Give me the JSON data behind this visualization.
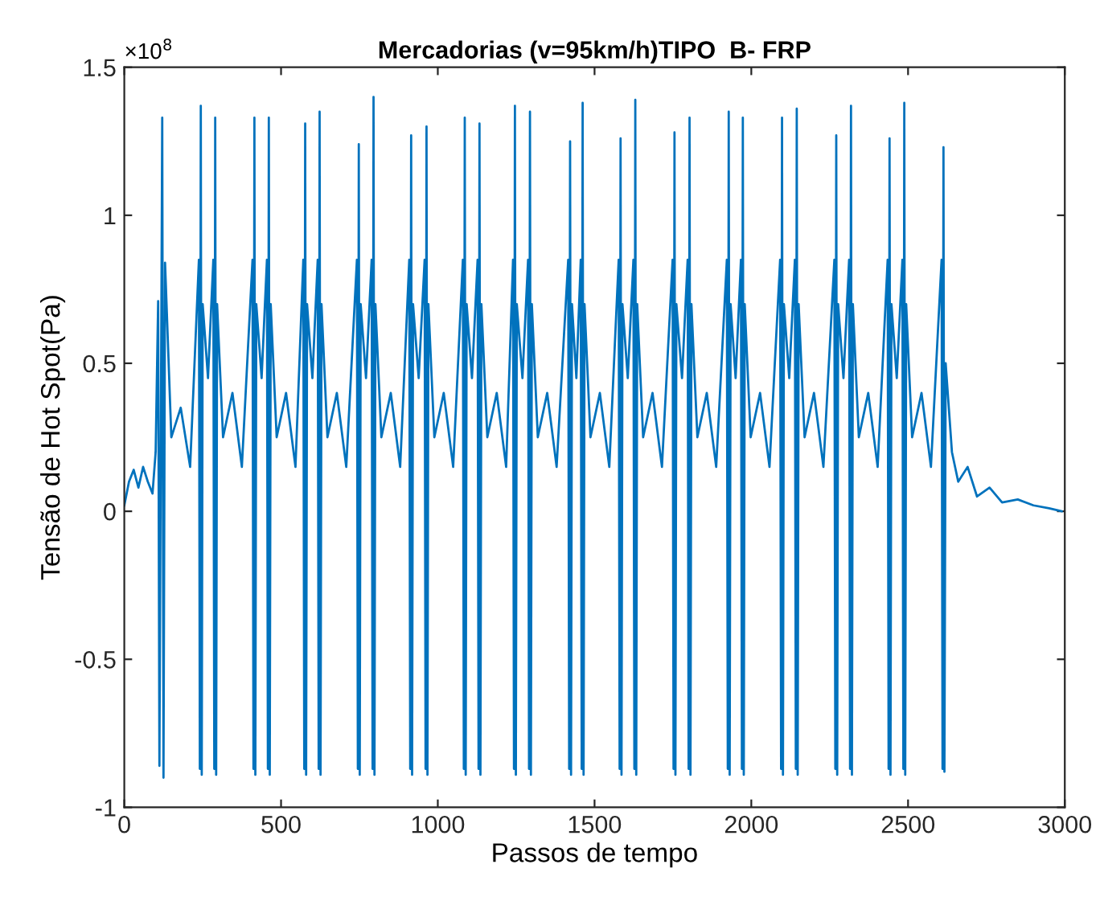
{
  "chart_data": {
    "type": "line",
    "title": "Mercadorias (v=95km/h)TIPO  B- FRP",
    "xlabel": "Passos de tempo",
    "ylabel": "Tensão de Hot Spot(Pa)",
    "annotations": [
      "×10$^{8}$"
    ],
    "xlim": [
      0,
      3000
    ],
    "xticks": [
      0,
      500,
      1000,
      1500,
      2000,
      2500,
      3000
    ],
    "ylim": [
      -1,
      1.5
    ],
    "yticks": [
      -1,
      -0.5,
      0,
      0.5,
      1,
      1.5
    ],
    "series": [
      {
        "color": "#0072bd",
        "x": [
          0,
          15,
          30,
          45,
          60,
          75,
          90,
          100,
          108,
          112,
          121,
          125,
          130,
          150,
          180,
          210,
          238,
          241,
          244,
          247,
          250,
          267,
          284,
          287,
          290,
          293,
          296,
          315,
          345,
          375,
          409,
          412,
          415,
          418,
          421,
          438,
          455,
          458,
          461,
          464,
          467,
          486,
          516,
          546,
          571,
          574,
          577,
          580,
          583,
          600,
          617,
          620,
          623,
          626,
          629,
          648,
          678,
          708,
          742,
          745,
          748,
          751,
          754,
          771,
          789,
          792,
          795,
          798,
          801,
          820,
          850,
          880,
          909,
          912,
          915,
          918,
          921,
          939,
          958,
          961,
          964,
          967,
          970,
          989,
          1019,
          1049,
          1080,
          1083,
          1086,
          1089,
          1092,
          1109,
          1127,
          1130,
          1133,
          1136,
          1139,
          1158,
          1188,
          1218,
          1240,
          1243,
          1246,
          1249,
          1252,
          1270,
          1288,
          1291,
          1294,
          1297,
          1300,
          1319,
          1349,
          1379,
          1416,
          1419,
          1422,
          1425,
          1428,
          1442,
          1456,
          1459,
          1462,
          1465,
          1468,
          1487,
          1517,
          1547,
          1577,
          1580,
          1583,
          1586,
          1589,
          1606,
          1624,
          1627,
          1630,
          1633,
          1636,
          1655,
          1685,
          1715,
          1749,
          1752,
          1755,
          1758,
          1761,
          1779,
          1797,
          1800,
          1803,
          1806,
          1809,
          1828,
          1858,
          1888,
          1922,
          1925,
          1928,
          1931,
          1934,
          1950,
          1967,
          1970,
          1973,
          1976,
          1979,
          1998,
          2028,
          2058,
          2092,
          2095,
          2098,
          2101,
          2104,
          2121,
          2139,
          2142,
          2145,
          2148,
          2151,
          2170,
          2200,
          2230,
          2265,
          2268,
          2271,
          2274,
          2277,
          2294,
          2312,
          2315,
          2318,
          2321,
          2324,
          2343,
          2373,
          2403,
          2435,
          2438,
          2441,
          2444,
          2447,
          2464,
          2482,
          2485,
          2488,
          2491,
          2494,
          2513,
          2543,
          2573,
          2607,
          2610,
          2613,
          2616,
          2620,
          2640,
          2660,
          2690,
          2720,
          2760,
          2800,
          2850,
          2900,
          2950,
          2990
        ],
        "values": [
          0.02,
          0.1,
          0.14,
          0.08,
          0.15,
          0.1,
          0.06,
          0.2,
          0.71,
          -0.86,
          1.33,
          -0.9,
          0.84,
          0.25,
          0.35,
          0.15,
          0.85,
          -0.87,
          1.37,
          -0.89,
          0.7,
          0.45,
          0.85,
          -0.87,
          1.33,
          -0.89,
          0.7,
          0.25,
          0.4,
          0.15,
          0.85,
          -0.87,
          1.33,
          -0.89,
          0.7,
          0.45,
          0.85,
          -0.87,
          1.33,
          -0.89,
          0.7,
          0.25,
          0.4,
          0.15,
          0.85,
          -0.87,
          1.31,
          -0.89,
          0.7,
          0.45,
          0.85,
          -0.87,
          1.35,
          -0.89,
          0.7,
          0.25,
          0.4,
          0.15,
          0.85,
          -0.87,
          1.24,
          -0.89,
          0.7,
          0.45,
          0.85,
          -0.87,
          1.4,
          -0.89,
          0.7,
          0.25,
          0.4,
          0.15,
          0.85,
          -0.87,
          1.27,
          -0.89,
          0.7,
          0.45,
          0.85,
          -0.87,
          1.3,
          -0.89,
          0.7,
          0.25,
          0.4,
          0.15,
          0.85,
          -0.87,
          1.33,
          -0.89,
          0.7,
          0.45,
          0.85,
          -0.87,
          1.31,
          -0.89,
          0.7,
          0.25,
          0.4,
          0.15,
          0.85,
          -0.87,
          1.37,
          -0.89,
          0.7,
          0.45,
          0.85,
          -0.87,
          1.35,
          -0.89,
          0.7,
          0.25,
          0.4,
          0.15,
          0.85,
          -0.87,
          1.25,
          -0.89,
          0.7,
          0.45,
          0.85,
          -0.87,
          1.38,
          -0.89,
          0.7,
          0.25,
          0.4,
          0.15,
          0.85,
          -0.87,
          1.26,
          -0.89,
          0.7,
          0.45,
          0.85,
          -0.87,
          1.39,
          -0.89,
          0.7,
          0.25,
          0.4,
          0.15,
          0.85,
          -0.87,
          1.28,
          -0.89,
          0.7,
          0.45,
          0.85,
          -0.87,
          1.33,
          -0.89,
          0.7,
          0.25,
          0.4,
          0.15,
          0.85,
          -0.87,
          1.35,
          -0.89,
          0.7,
          0.45,
          0.85,
          -0.87,
          1.33,
          -0.89,
          0.7,
          0.25,
          0.4,
          0.15,
          0.85,
          -0.87,
          1.33,
          -0.89,
          0.7,
          0.45,
          0.85,
          -0.87,
          1.36,
          -0.89,
          0.7,
          0.25,
          0.4,
          0.15,
          0.85,
          -0.87,
          1.27,
          -0.89,
          0.7,
          0.45,
          0.85,
          -0.87,
          1.37,
          -0.89,
          0.7,
          0.25,
          0.4,
          0.15,
          0.85,
          -0.87,
          1.26,
          -0.89,
          0.7,
          0.45,
          0.85,
          -0.87,
          1.38,
          -0.89,
          0.7,
          0.25,
          0.4,
          0.15,
          0.85,
          -0.87,
          1.23,
          -0.88,
          0.5,
          0.2,
          0.1,
          0.15,
          0.05,
          0.08,
          0.03,
          0.04,
          0.02,
          0.01,
          0.0
        ]
      }
    ]
  }
}
